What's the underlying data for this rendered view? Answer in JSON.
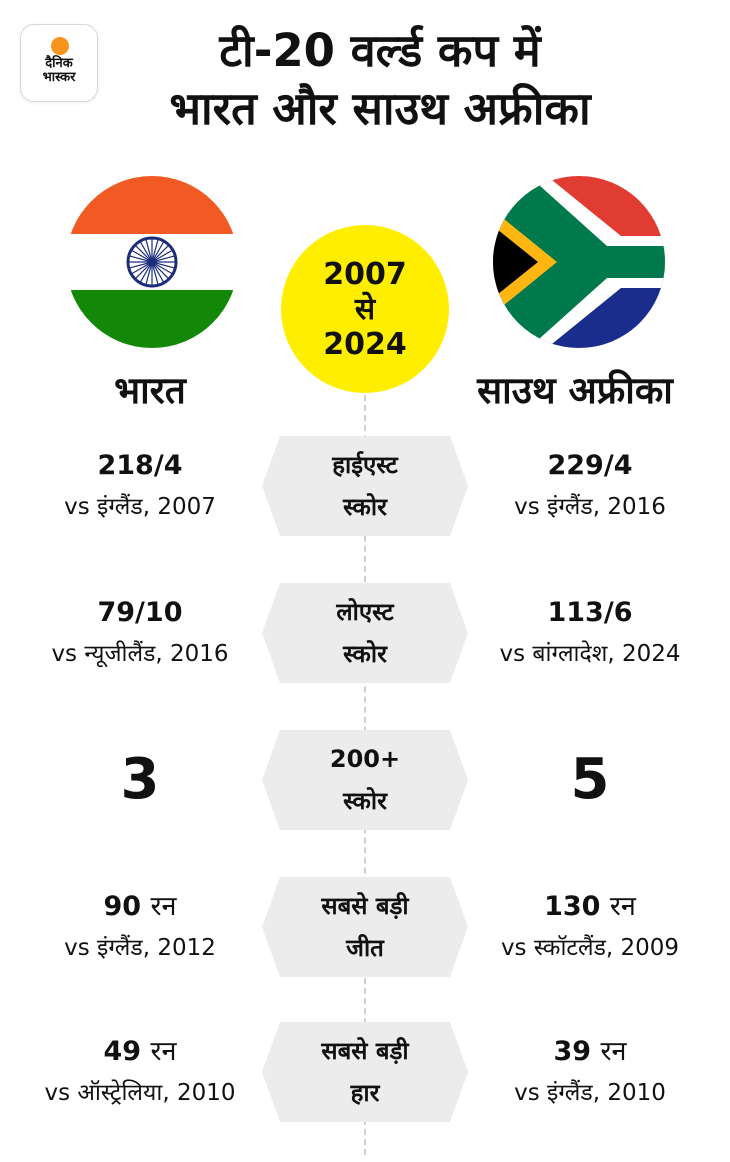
{
  "logo": {
    "line1": "दैनिक",
    "line2": "भास्कर"
  },
  "title": {
    "line1": "टी-20 वर्ल्ड कप में",
    "line2": "भारत और साउथ अफ्रीका"
  },
  "period": {
    "from": "2007",
    "connector": "से",
    "to": "2024"
  },
  "teams": {
    "india": "भारत",
    "south_africa": "साउथ अफ्रीका"
  },
  "colors": {
    "india_saffron": "#f15a22",
    "india_green": "#138808",
    "chakra_blue": "#1c2c7a",
    "za_red": "#e03c31",
    "za_blue": "#1a2c8c",
    "za_green": "#007a4d",
    "za_yellow": "#ffb612",
    "year_circle": "#ffee00",
    "pill_bg": "#ececec"
  },
  "rows": [
    {
      "label1": "हाईएस्ट",
      "label2": "स्कोर",
      "india": {
        "value": "218/4",
        "unit": "",
        "detail": "vs इंग्लैंड, 2007"
      },
      "south_africa": {
        "value": "229/4",
        "unit": "",
        "detail": "vs इंग्लैंड, 2016"
      }
    },
    {
      "label1": "लोएस्ट",
      "label2": "स्कोर",
      "india": {
        "value": "79/10",
        "unit": "",
        "detail": "vs न्यूजीलैंड, 2016"
      },
      "south_africa": {
        "value": "113/6",
        "unit": "",
        "detail": "vs बांग्लादेश, 2024"
      }
    },
    {
      "label1": "200+",
      "label2": "स्कोर",
      "india": {
        "value": "3"
      },
      "south_africa": {
        "value": "5"
      }
    },
    {
      "label1": "सबसे बड़ी",
      "label2": "जीत",
      "india": {
        "value": "90",
        "unit": "रन",
        "detail": "vs इंग्लैंड, 2012"
      },
      "south_africa": {
        "value": "130",
        "unit": "रन",
        "detail": "vs स्कॉटलैंड, 2009"
      }
    },
    {
      "label1": "सबसे बड़ी",
      "label2": "हार",
      "india": {
        "value": "49",
        "unit": "रन",
        "detail": "vs ऑस्ट्रेलिया, 2010"
      },
      "south_africa": {
        "value": "39",
        "unit": "रन",
        "detail": "vs इंग्लैंड, 2010"
      }
    }
  ]
}
